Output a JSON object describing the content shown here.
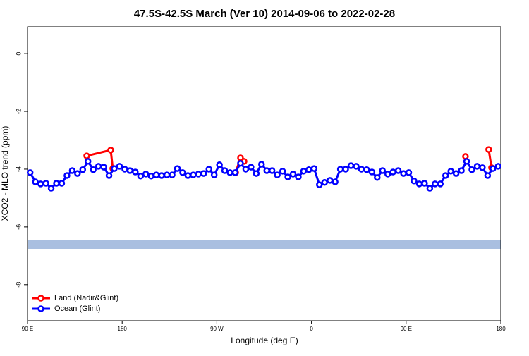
{
  "chart_data": {
    "type": "line",
    "title": "47.5S-42.5S March (Ver 10)   2014-09-06 to 2022-02-28",
    "x_label": "Longitude (deg E)",
    "y_label": "XCO2 - MLO trend (ppm)",
    "xlim": [
      90,
      540
    ],
    "xticks": [
      {
        "value": 90,
        "label": "90 E"
      },
      180,
      {
        "value": 270,
        "label": "90 W"
      },
      {
        "value": 360,
        "label": "0"
      },
      {
        "value": 450,
        "label": "90 E"
      },
      {
        "value": 540,
        "label": "180"
      }
    ],
    "ylim": [
      -9.25,
      0.93
    ],
    "yticks": [
      0,
      -2,
      -4,
      -6,
      -8
    ],
    "legend": "bottom-left",
    "band": {
      "values": [
        -6.76,
        -6.46
      ],
      "color": "#a9bfe0"
    },
    "series": [
      {
        "name": "Land (Nadir&Glint)",
        "color": "#ff0000",
        "x": [
          146.3,
          169.1,
          171.1,
          null,
          287.9,
          292.5,
          295.9,
          null,
          506.4,
          null,
          528.5,
          531.2
        ],
        "values": [
          -3.54,
          -3.34,
          -3.98,
          null,
          -4.12,
          -3.61,
          -3.73,
          null,
          -3.56,
          null,
          -3.32,
          -3.95
        ]
      },
      {
        "name": "Ocean (Glint)",
        "color": "#0000ff",
        "x": [
          92.5,
          97.5,
          102.5,
          107.5,
          112.5,
          117.5,
          122.5,
          127.5,
          132.5,
          137.5,
          142.5,
          147.5,
          152.5,
          157.5,
          162.5,
          167.5,
          172.5,
          177.5,
          182.5,
          187.5,
          192.5,
          197.5,
          202.5,
          207.5,
          212.5,
          217.5,
          222.5,
          227.5,
          232.5,
          237.5,
          242.5,
          247.5,
          252.5,
          257.5,
          262.5,
          267.5,
          272.5,
          277.5,
          282.5,
          287.5,
          292.5,
          297.5,
          302.5,
          307.5,
          312.5,
          317.5,
          322.5,
          327.5,
          332.5,
          337.5,
          342.5,
          347.5,
          352.5,
          357.5,
          362.5,
          367.5,
          372.5,
          377.5,
          382.5,
          387.5,
          392.5,
          397.5,
          402.5,
          407.5,
          412.5,
          417.5,
          422.5,
          427.5,
          432.5,
          437.5,
          442.5,
          447.5,
          452.5,
          457.5,
          462.5,
          467.5,
          472.5,
          477.5,
          482.5,
          487.5,
          492.5,
          497.5,
          502.5,
          507.5,
          512.5,
          517.5,
          522.5,
          527.5,
          532.5,
          537.5
        ],
        "values": [
          -4.12,
          -4.44,
          -4.51,
          -4.49,
          -4.66,
          -4.49,
          -4.49,
          -4.22,
          -4.05,
          -4.15,
          -4.02,
          -3.73,
          -4.02,
          -3.9,
          -3.93,
          -4.22,
          -3.98,
          -3.9,
          -4.0,
          -4.05,
          -4.1,
          -4.24,
          -4.17,
          -4.24,
          -4.2,
          -4.22,
          -4.2,
          -4.2,
          -3.98,
          -4.12,
          -4.22,
          -4.2,
          -4.17,
          -4.15,
          -4.0,
          -4.2,
          -3.85,
          -4.05,
          -4.12,
          -4.12,
          -3.8,
          -4.0,
          -3.93,
          -4.15,
          -3.83,
          -4.05,
          -4.05,
          -4.2,
          -4.07,
          -4.27,
          -4.17,
          -4.27,
          -4.07,
          -4.02,
          -3.98,
          -4.54,
          -4.46,
          -4.39,
          -4.44,
          -4.0,
          -4.0,
          -3.88,
          -3.9,
          -4.0,
          -4.02,
          -4.1,
          -4.29,
          -4.05,
          -4.17,
          -4.1,
          -4.05,
          -4.15,
          -4.12,
          -4.41,
          -4.51,
          -4.49,
          -4.66,
          -4.51,
          -4.51,
          -4.22,
          -4.07,
          -4.15,
          -4.05,
          -3.73,
          -4.02,
          -3.9,
          -3.95,
          -4.22,
          -3.98,
          -3.9
        ]
      }
    ]
  }
}
